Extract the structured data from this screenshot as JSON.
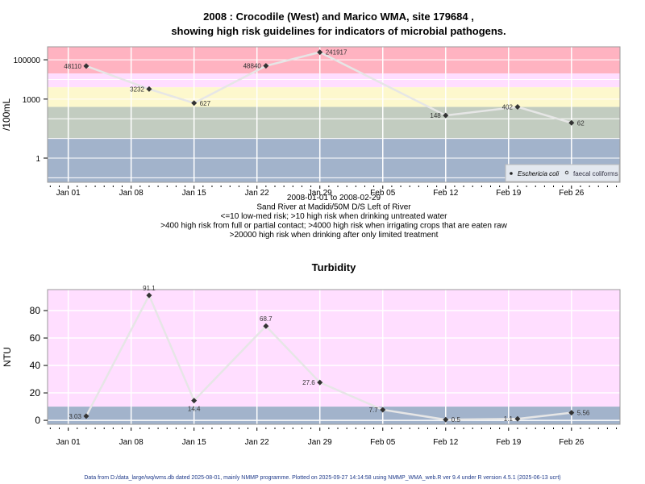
{
  "chart_data": [
    {
      "type": "line",
      "title": "2008 : Crocodile (West) and Marico WMA, site 179684 ,",
      "subtitle": "showing high risk guidelines for indicators of microbial pathogens.",
      "ylabel": "/100mL",
      "yscale": "log",
      "yticks": [
        1,
        1000,
        100000
      ],
      "ytick_labels": [
        "1",
        "1000",
        "100000"
      ],
      "xlim_days": [
        -2.3,
        61.4
      ],
      "ylim_log10": [
        -1.23,
        5.66
      ],
      "x_ticks": [
        "Jan 01",
        "Jan 08",
        "Jan 15",
        "Jan 22",
        "Jan 29",
        "Feb 05",
        "Feb 12",
        "Feb 19",
        "Feb 26"
      ],
      "x_ticks_days": [
        0,
        7,
        14,
        21,
        28,
        35,
        42,
        49,
        56
      ],
      "x_caption": [
        "2008-01-01 to 2008-02-29",
        "Sand River at Madidi/50M D/S Left of River",
        "<=10 low-med risk; >10 high risk when drinking untreated water",
        ">400 high risk from full or partial contact; >4000 high risk when irrigating crops that are eaten raw",
        ">20000 high risk when drinking after only limited treatment"
      ],
      "bands": [
        {
          "from": 20000,
          "to": null,
          "color": "#ffb3c1"
        },
        {
          "from": 4000,
          "to": 20000,
          "color": "#ffdeff"
        },
        {
          "from": 400,
          "to": 4000,
          "color": "#fdf8cd"
        },
        {
          "from": 10,
          "to": 400,
          "color": "#c2ccc0"
        },
        {
          "from": null,
          "to": 10,
          "color": "#a2b3cb"
        }
      ],
      "legend": {
        "position": "bottom-right",
        "items": [
          "Eschericia coli",
          "faecal coliforms"
        ]
      },
      "series": [
        {
          "name": "Eschericia coli",
          "x_days": [
            2,
            9,
            14,
            22,
            28,
            42,
            50,
            56
          ],
          "values": [
            48110,
            3232,
            627,
            48840,
            241917,
            148,
            402,
            62
          ],
          "labels": [
            "48110",
            "3232",
            "627",
            "48840",
            "241917",
            "148",
            "402",
            "62"
          ],
          "label_side": [
            "l",
            "l",
            "r",
            "l",
            "r",
            "l",
            "l",
            "r"
          ]
        }
      ]
    },
    {
      "type": "line",
      "title": "Turbidity",
      "ylabel": "NTU",
      "ylim": [
        -2.9,
        95.3
      ],
      "yticks": [
        0,
        20,
        40,
        60,
        80
      ],
      "ytick_labels": [
        "0",
        "20",
        "40",
        "60",
        "80"
      ],
      "xlim_days": [
        -2.3,
        61.4
      ],
      "x_ticks": [
        "Jan 01",
        "Jan 08",
        "Jan 15",
        "Jan 22",
        "Jan 29",
        "Feb 05",
        "Feb 12",
        "Feb 19",
        "Feb 26"
      ],
      "x_ticks_days": [
        0,
        7,
        14,
        21,
        28,
        35,
        42,
        49,
        56
      ],
      "bands": [
        {
          "from": 10,
          "to": null,
          "color": "#ffdeff"
        },
        {
          "from": null,
          "to": 10,
          "color": "#a2b3cb"
        }
      ],
      "series": [
        {
          "name": "Turbidity",
          "x_days": [
            2,
            9,
            14,
            22,
            28,
            35,
            42,
            50,
            56
          ],
          "values": [
            3.03,
            91.1,
            14.4,
            68.7,
            27.6,
            7.7,
            0.5,
            1.1,
            5.56
          ],
          "labels": [
            "3.03",
            "91.1",
            "14.4",
            "68.7",
            "27.6",
            "7.7",
            "0.5",
            "1.1",
            "5.56"
          ],
          "label_side": [
            "l",
            "t",
            "b",
            "t",
            "l",
            "l",
            "r",
            "l",
            "r"
          ]
        }
      ]
    }
  ],
  "footer": "Data from D:/data_large/wq/wms.db dated 2025-08-01, mainly NMMP programme. Plotted on 2025-09-27 14:14:58 using NMMP_WMA_web.R ver 9.4 under R version 4.5.1 (2025-06-13 ucrt)"
}
